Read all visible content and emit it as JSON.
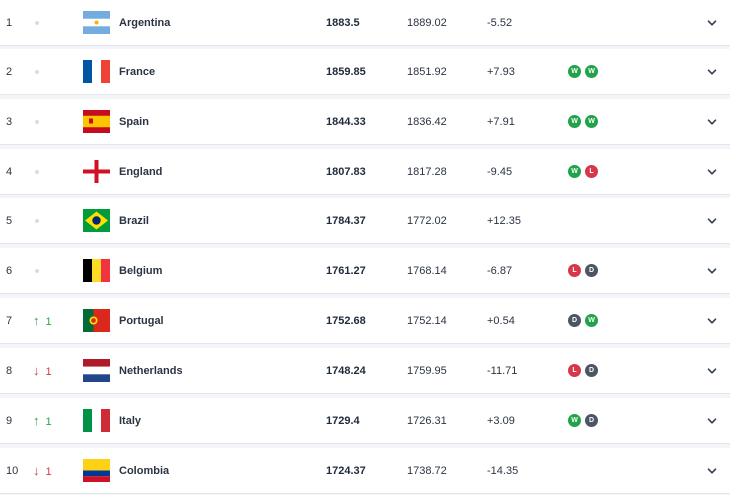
{
  "colors": {
    "win": "#22a24a",
    "loss": "#d6374a",
    "draw": "#4d5564",
    "up": "#2aa34a",
    "down": "#d6374a"
  },
  "rows": [
    {
      "rank": "1",
      "movement": "none",
      "change": "",
      "team": "Argentina",
      "flag": "argentina-flag-icon",
      "points": "1883.5",
      "previous": "1889.02",
      "diff": "-5.52",
      "form": []
    },
    {
      "rank": "2",
      "movement": "none",
      "change": "",
      "team": "France",
      "flag": "france-flag-icon",
      "points": "1859.85",
      "previous": "1851.92",
      "diff": "+7.93",
      "form": [
        "W",
        "W"
      ]
    },
    {
      "rank": "3",
      "movement": "none",
      "change": "",
      "team": "Spain",
      "flag": "spain-flag-icon",
      "points": "1844.33",
      "previous": "1836.42",
      "diff": "+7.91",
      "form": [
        "W",
        "W"
      ]
    },
    {
      "rank": "4",
      "movement": "none",
      "change": "",
      "team": "England",
      "flag": "england-flag-icon",
      "points": "1807.83",
      "previous": "1817.28",
      "diff": "-9.45",
      "form": [
        "W",
        "L"
      ]
    },
    {
      "rank": "5",
      "movement": "none",
      "change": "",
      "team": "Brazil",
      "flag": "brazil-flag-icon",
      "points": "1784.37",
      "previous": "1772.02",
      "diff": "+12.35",
      "form": []
    },
    {
      "rank": "6",
      "movement": "none",
      "change": "",
      "team": "Belgium",
      "flag": "belgium-flag-icon",
      "points": "1761.27",
      "previous": "1768.14",
      "diff": "-6.87",
      "form": [
        "L",
        "D"
      ]
    },
    {
      "rank": "7",
      "movement": "up",
      "change": "1",
      "team": "Portugal",
      "flag": "portugal-flag-icon",
      "points": "1752.68",
      "previous": "1752.14",
      "diff": "+0.54",
      "form": [
        "D",
        "W"
      ]
    },
    {
      "rank": "8",
      "movement": "down",
      "change": "1",
      "team": "Netherlands",
      "flag": "netherlands-flag-icon",
      "points": "1748.24",
      "previous": "1759.95",
      "diff": "-11.71",
      "form": [
        "L",
        "D"
      ]
    },
    {
      "rank": "9",
      "movement": "up",
      "change": "1",
      "team": "Italy",
      "flag": "italy-flag-icon",
      "points": "1729.4",
      "previous": "1726.31",
      "diff": "+3.09",
      "form": [
        "W",
        "D"
      ]
    },
    {
      "rank": "10",
      "movement": "down",
      "change": "1",
      "team": "Colombia",
      "flag": "colombia-flag-icon",
      "points": "1724.37",
      "previous": "1738.72",
      "diff": "-14.35",
      "form": []
    }
  ]
}
